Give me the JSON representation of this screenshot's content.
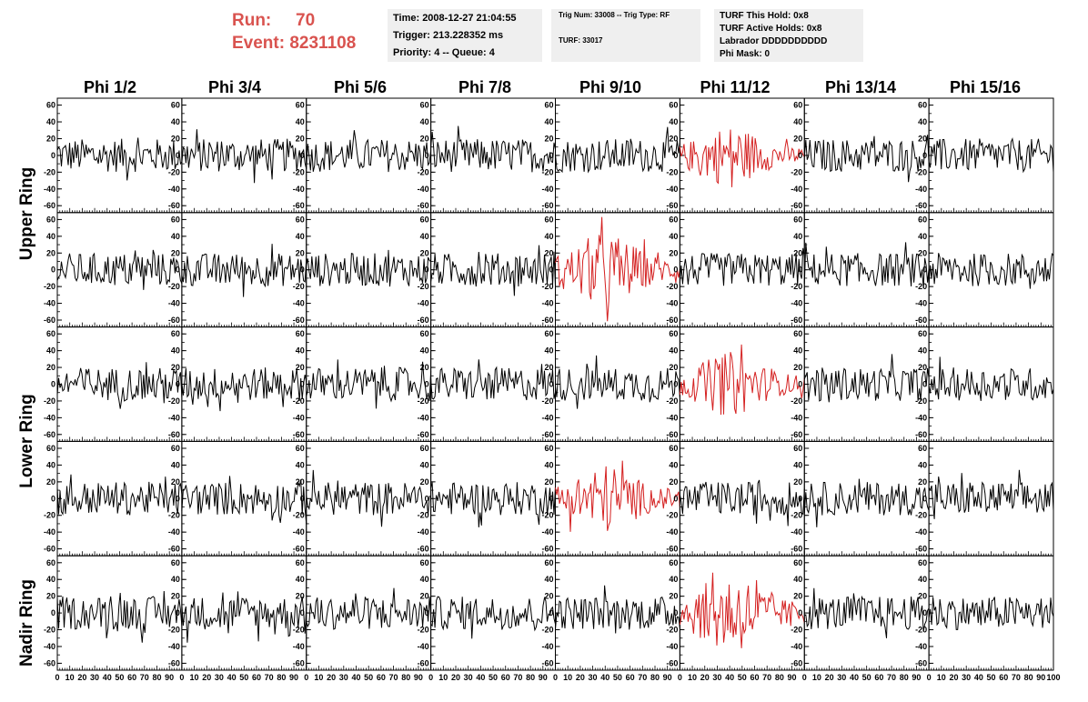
{
  "header": {
    "run_label": "Run:",
    "run_value": "70",
    "event_label": "Event:",
    "event_value": "8231108",
    "time_line": "Time: 2008-12-27 21:04:55",
    "trigger_line": "Trigger: 213.228352 ms",
    "priority_line": "Priority: 4 -- Queue: 4",
    "trig_line": "Trig Num: 33008 -- Trig Type: RF",
    "turf_line": "TURF: 33017",
    "turf_hold_line": "TURF This Hold: 0x8",
    "turf_active_line": "TURF Active Holds: 0x8",
    "labrador_line": "Labrador DDDDDDDDDD",
    "phi_mask_line": "Phi Mask: 0"
  },
  "columns": [
    "Phi 1/2",
    "Phi 3/4",
    "Phi 5/6",
    "Phi 7/8",
    "Phi 9/10",
    "Phi 11/12",
    "Phi 13/14",
    "Phi 15/16"
  ],
  "rings": [
    "Upper Ring",
    "Lower Ring",
    "Nadir Ring"
  ],
  "colors": {
    "normal": "#000000",
    "triggered": "#d42020",
    "header_red": "#d9534f"
  },
  "chart_data": {
    "type": "line",
    "grid_rows": 5,
    "grid_cols": 8,
    "xlim": [
      0,
      100
    ],
    "ylim": [
      -65,
      65
    ],
    "x_ticks": [
      0,
      10,
      20,
      30,
      40,
      50,
      60,
      70,
      80,
      90,
      100
    ],
    "x_tick_labels": [
      "0",
      "10",
      "20",
      "30",
      "40",
      "50",
      "60",
      "70",
      "80",
      "90",
      "100"
    ],
    "y_ticks": [
      -60,
      -40,
      -20,
      0,
      20,
      40,
      60
    ],
    "y_tick_labels": [
      "-60",
      "-40",
      "-20",
      "0",
      "20",
      "40",
      "60"
    ],
    "samples": 92,
    "typical_amplitude": 20,
    "highlighted_panels": [
      {
        "row": 0,
        "col": 5,
        "color": "#d42020",
        "amplitude": 28
      },
      {
        "row": 1,
        "col": 4,
        "color": "#d42020",
        "amplitude": 35
      },
      {
        "row": 2,
        "col": 5,
        "color": "#d42020",
        "amplitude": 30
      },
      {
        "row": 3,
        "col": 4,
        "color": "#d42020",
        "amplitude": 32
      },
      {
        "row": 4,
        "col": 5,
        "color": "#d42020",
        "amplitude": 38
      }
    ]
  }
}
